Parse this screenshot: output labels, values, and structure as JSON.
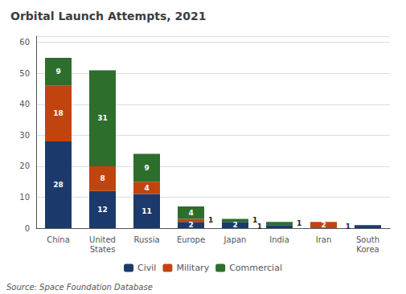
{
  "chart_data": {
    "type": "bar",
    "title": "Orbital Launch Attempts, 2021",
    "annotations": [
      "Source: Space Foundation Database"
    ],
    "categories": [
      "China",
      "United\nStates",
      "Russia",
      "Europe",
      "Japan",
      "India",
      "Iran",
      "South\nKorea"
    ],
    "series": [
      {
        "name": "Civil",
        "color": "#1b3a6b",
        "values": [
          28,
          12,
          11,
          2,
          2,
          1,
          0,
          1
        ]
      },
      {
        "name": "Military",
        "color": "#c1440e",
        "values": [
          18,
          8,
          4,
          1,
          0,
          0,
          2,
          0
        ]
      },
      {
        "name": "Commercial",
        "color": "#2d6e2d",
        "values": [
          9,
          31,
          9,
          4,
          1,
          1,
          0,
          0
        ]
      }
    ],
    "stacked": true,
    "data_labels": true,
    "ylim": [
      0,
      62
    ],
    "yticks": [
      0,
      10,
      20,
      30,
      40,
      50,
      60
    ],
    "grid": true,
    "legend": "bottom"
  }
}
